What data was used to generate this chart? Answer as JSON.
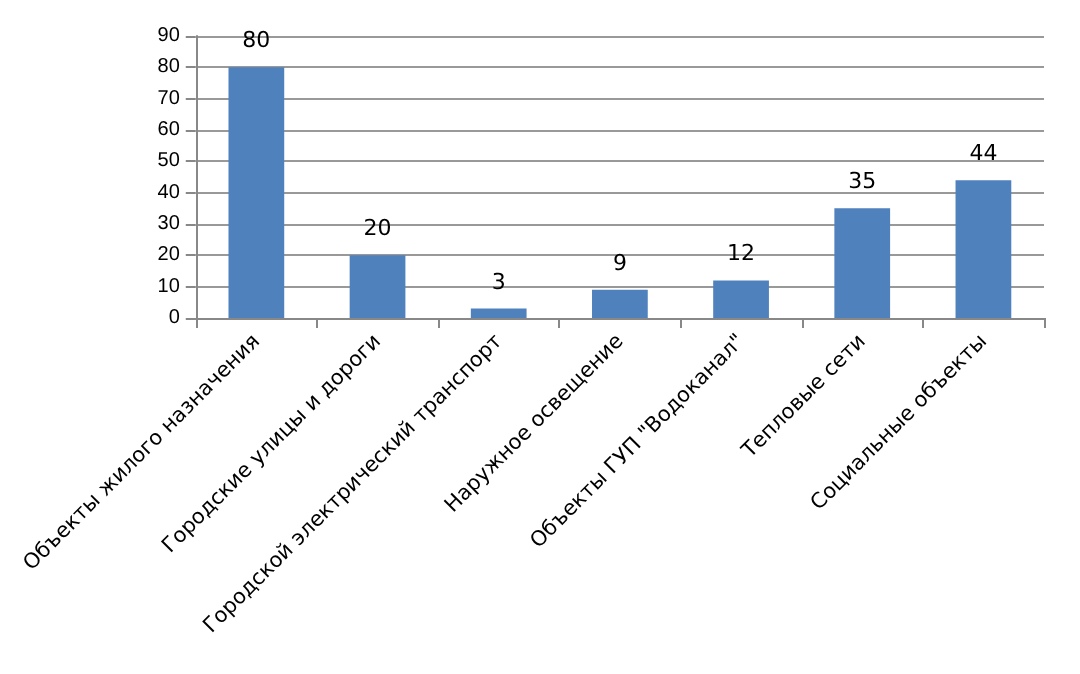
{
  "chart_data": {
    "type": "bar",
    "categories": [
      "Объекты жилого назначения",
      "Городские улицы и дороги",
      "Городской электрический транспорт",
      "Наружное освещение",
      "Объекты ГУП \"Водоканал\"",
      "Тепловые сети",
      "Социальные объекты"
    ],
    "values": [
      80,
      20,
      3,
      9,
      12,
      35,
      44
    ],
    "color": "#4f81bd",
    "ylim": [
      0,
      90
    ],
    "yticks": [
      0,
      10,
      20,
      30,
      40,
      50,
      60,
      70,
      80,
      90
    ],
    "grid": "y",
    "data_labels": true
  }
}
